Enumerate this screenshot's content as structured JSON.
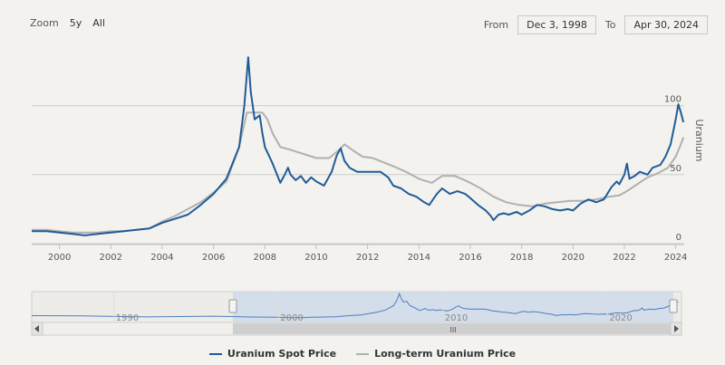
{
  "toolbar": {
    "zoom_label": "Zoom",
    "zoom_buttons": [
      "5y",
      "All"
    ],
    "from_label": "From",
    "from_value": "Dec 3, 1998",
    "to_label": "To",
    "to_value": "Apr 30, 2024"
  },
  "colors": {
    "spot": "#1f5c99",
    "long_term": "#b0b0b0",
    "grid": "#cccccc",
    "navigator_fill": "#cfdcea",
    "navigator_line": "#4a7fc0"
  },
  "chart_data": {
    "type": "line",
    "title": "",
    "xlabel": "",
    "ylabel": "Uranium",
    "xlim": [
      1998.92,
      2024.33
    ],
    "ylim": [
      0,
      145
    ],
    "x_ticks": [
      "2000",
      "2002",
      "2004",
      "2006",
      "2008",
      "2010",
      "2012",
      "2014",
      "2016",
      "2018",
      "2020",
      "2022",
      "2024"
    ],
    "y_ticks": [
      "0",
      "50",
      "100"
    ],
    "grid": true,
    "legend_position": "bottom",
    "series": [
      {
        "name": "Uranium Spot Price",
        "color": "#1f5c99",
        "x": [
          1998.92,
          1999.5,
          2000.0,
          2000.5,
          2001.0,
          2001.5,
          2002.0,
          2002.5,
          2003.0,
          2003.5,
          2004.0,
          2004.5,
          2005.0,
          2005.5,
          2006.0,
          2006.5,
          2007.0,
          2007.2,
          2007.35,
          2007.45,
          2007.6,
          2007.8,
          2007.9,
          2008.0,
          2008.3,
          2008.6,
          2008.8,
          2008.9,
          2009.0,
          2009.2,
          2009.4,
          2009.6,
          2009.8,
          2010.0,
          2010.3,
          2010.6,
          2010.8,
          2010.95,
          2011.1,
          2011.3,
          2011.6,
          2012.0,
          2012.5,
          2012.8,
          2013.0,
          2013.3,
          2013.6,
          2013.9,
          2014.2,
          2014.4,
          2014.7,
          2014.9,
          2015.2,
          2015.5,
          2015.8,
          2016.0,
          2016.3,
          2016.6,
          2016.8,
          2016.9,
          2017.1,
          2017.3,
          2017.5,
          2017.8,
          2018.0,
          2018.3,
          2018.6,
          2018.9,
          2019.2,
          2019.5,
          2019.8,
          2020.0,
          2020.3,
          2020.6,
          2020.9,
          2021.2,
          2021.5,
          2021.7,
          2021.8,
          2022.0,
          2022.1,
          2022.2,
          2022.4,
          2022.6,
          2022.9,
          2023.1,
          2023.4,
          2023.6,
          2023.8,
          2024.0,
          2024.1,
          2024.2,
          2024.3
        ],
        "values": [
          9,
          9,
          8,
          7,
          6,
          7,
          8,
          9,
          10,
          11,
          15,
          18,
          21,
          28,
          36,
          47,
          70,
          100,
          135,
          110,
          90,
          93,
          80,
          70,
          58,
          44,
          51,
          55,
          50,
          46,
          49,
          44,
          48,
          45,
          42,
          52,
          64,
          69,
          60,
          55,
          52,
          52,
          52,
          48,
          42,
          40,
          36,
          34,
          30,
          28,
          36,
          40,
          36,
          38,
          36,
          33,
          28,
          24,
          20,
          17,
          21,
          22,
          21,
          23,
          21,
          24,
          28,
          27,
          25,
          24,
          25,
          24,
          29,
          32,
          30,
          32,
          41,
          45,
          43,
          50,
          58,
          47,
          49,
          52,
          50,
          55,
          57,
          63,
          72,
          90,
          101,
          95,
          88
        ]
      },
      {
        "name": "Long-term Uranium Price",
        "color": "#b0b0b0",
        "x": [
          1998.92,
          1999.5,
          2000.0,
          2000.5,
          2001.0,
          2001.5,
          2002.0,
          2002.5,
          2003.0,
          2003.5,
          2004.0,
          2004.5,
          2005.0,
          2005.5,
          2006.0,
          2006.5,
          2007.0,
          2007.3,
          2007.6,
          2007.9,
          2008.1,
          2008.3,
          2008.6,
          2009.0,
          2009.5,
          2010.0,
          2010.5,
          2010.9,
          2011.1,
          2011.4,
          2011.8,
          2012.2,
          2012.6,
          2013.0,
          2013.5,
          2014.0,
          2014.5,
          2014.9,
          2015.4,
          2015.9,
          2016.4,
          2016.9,
          2017.4,
          2017.9,
          2018.4,
          2018.9,
          2019.4,
          2019.9,
          2020.4,
          2020.9,
          2021.4,
          2021.8,
          2022.1,
          2022.5,
          2022.9,
          2023.3,
          2023.7,
          2024.0,
          2024.2,
          2024.3
        ],
        "values": [
          10,
          10,
          9,
          8,
          8,
          8,
          9,
          9,
          10,
          11,
          16,
          20,
          25,
          30,
          37,
          45,
          70,
          95,
          95,
          95,
          90,
          80,
          70,
          68,
          65,
          62,
          62,
          68,
          72,
          68,
          63,
          62,
          59,
          56,
          52,
          47,
          44,
          49,
          49,
          45,
          40,
          34,
          30,
          28,
          27,
          29,
          30,
          31,
          31,
          32,
          34,
          35,
          38,
          43,
          48,
          51,
          55,
          63,
          72,
          77
        ]
      }
    ]
  },
  "navigator": {
    "labels": [
      "1990",
      "2000",
      "2010",
      "2020"
    ],
    "scroll_grip": "III"
  }
}
